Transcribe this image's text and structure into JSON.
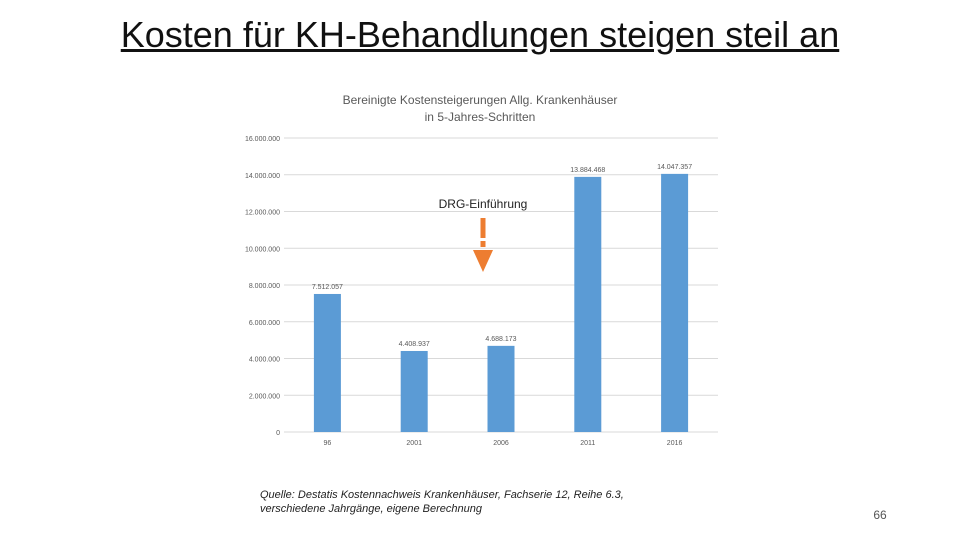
{
  "slide": {
    "title": "Kosten für KH-Behandlungen steigen steil an",
    "source_note": "Quelle: Destatis Kostennachweis Krankenhäuser, Fachserie 12, Reihe 6.3,\nverschiedene Jahrgänge, eigene Berechnung",
    "page_number": "66"
  },
  "chart_data": {
    "type": "bar",
    "title": "Bereinigte Kostensteigerungen Allg. Krankenhäuser",
    "subtitle": "in 5-Jahres-Schritten",
    "categories": [
      "96",
      "2001",
      "2006",
      "2011",
      "2016"
    ],
    "values": [
      7512057,
      4408937,
      4688173,
      13884468,
      14047357
    ],
    "value_labels": [
      "7.512.057",
      "4.408.937",
      "4.688.173",
      "13.884.468",
      "14.047.357"
    ],
    "y_ticks": [
      0,
      2000000,
      4000000,
      6000000,
      8000000,
      10000000,
      12000000,
      14000000,
      16000000
    ],
    "y_tick_labels": [
      "0",
      "2.000.000",
      "4.000.000",
      "6.000.000",
      "8.000.000",
      "10.000.000",
      "12.000.000",
      "14.000.000",
      "16.000.000"
    ],
    "ylim": [
      0,
      16000000
    ],
    "grid": true,
    "bar_color": "#5b9bd5",
    "annotation": {
      "text": "DRG-Einführung",
      "category": "2006",
      "arrow_color": "#ed7d31"
    }
  }
}
